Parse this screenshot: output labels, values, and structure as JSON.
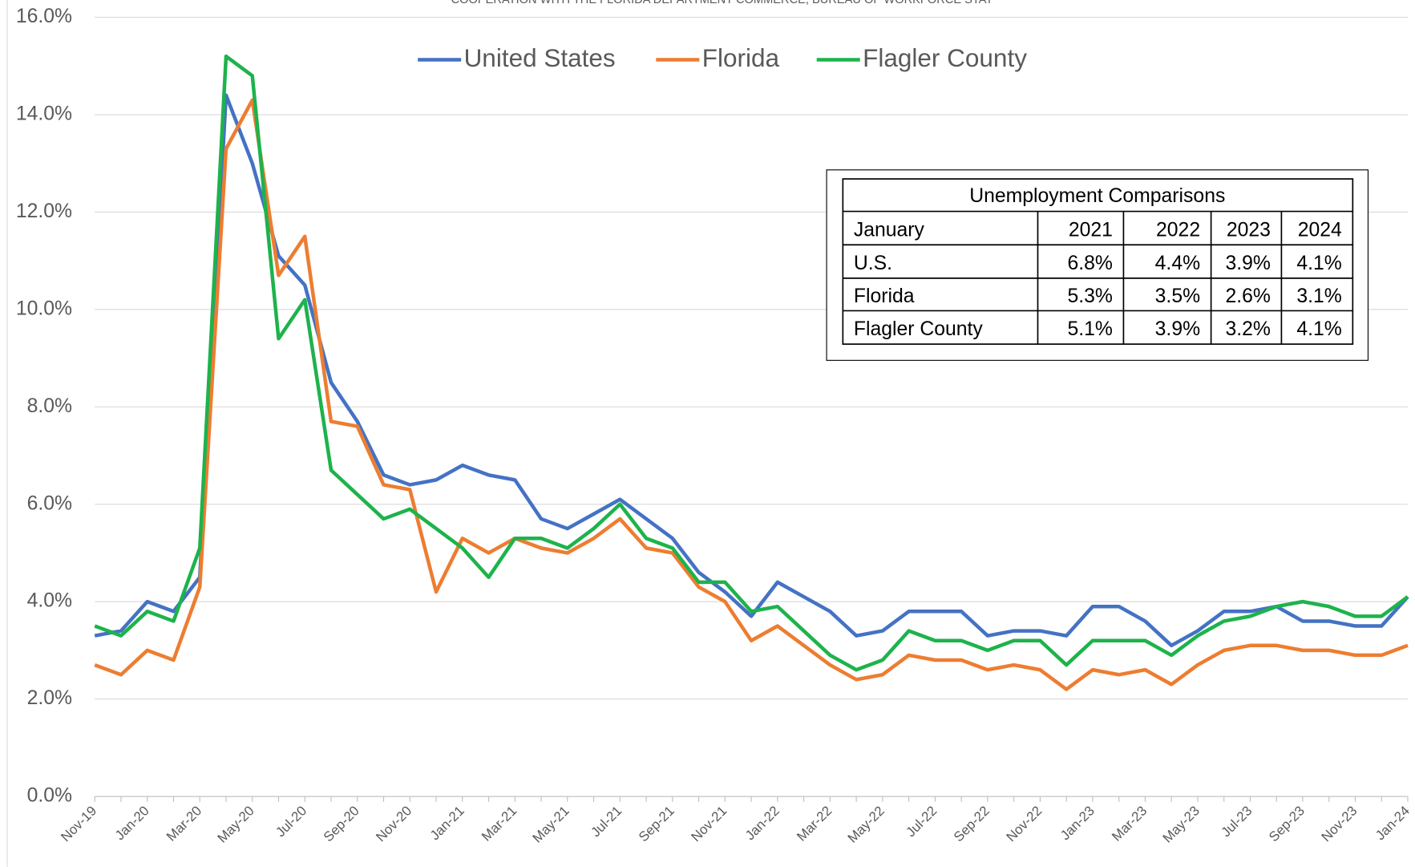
{
  "chart_data": {
    "type": "line",
    "subtitle": "COOPERATION WITH THE FLORIDA DEPARTMENT COMMERCE, BUREAU OF WORKFORCE STAT",
    "categories": [
      "Nov-19",
      null,
      "Jan-20",
      null,
      "Mar-20",
      null,
      "May-20",
      null,
      "Jul-20",
      null,
      "Sep-20",
      null,
      "Nov-20",
      null,
      "Jan-21",
      null,
      "Mar-21",
      null,
      "May-21",
      null,
      "Jul-21",
      null,
      "Sep-21",
      null,
      "Nov-21",
      null,
      "Jan-22",
      null,
      "Mar-22",
      null,
      "May-22",
      null,
      "Jul-22",
      null,
      "Sep-22",
      null,
      "Nov-22",
      null,
      "Jan-23",
      null,
      "Mar-23",
      null,
      "May-23",
      null,
      "Jul-23",
      null,
      "Sep-23",
      null,
      "Nov-23",
      null,
      "Jan-24"
    ],
    "series": [
      {
        "name": "United States",
        "color": "#4472c4",
        "values": [
          3.3,
          3.4,
          4.0,
          3.8,
          4.5,
          14.4,
          13.0,
          11.1,
          10.5,
          8.5,
          7.7,
          6.6,
          6.4,
          6.5,
          6.8,
          6.6,
          6.5,
          5.7,
          5.5,
          5.8,
          6.1,
          5.7,
          5.3,
          4.6,
          4.2,
          3.7,
          4.4,
          4.1,
          3.8,
          3.3,
          3.4,
          3.8,
          3.8,
          3.8,
          3.3,
          3.4,
          3.4,
          3.3,
          3.9,
          3.9,
          3.6,
          3.1,
          3.4,
          3.8,
          3.8,
          3.9,
          3.6,
          3.6,
          3.5,
          3.5,
          4.1
        ]
      },
      {
        "name": "Florida",
        "color": "#ed7d31",
        "values": [
          2.7,
          2.5,
          3.0,
          2.8,
          4.3,
          13.3,
          14.3,
          10.7,
          11.5,
          7.7,
          7.6,
          6.4,
          6.3,
          4.2,
          5.3,
          5.0,
          5.3,
          5.1,
          5.0,
          5.3,
          5.7,
          5.1,
          5.0,
          4.3,
          4.0,
          3.2,
          3.5,
          3.1,
          2.7,
          2.4,
          2.5,
          2.9,
          2.8,
          2.8,
          2.6,
          2.7,
          2.6,
          2.2,
          2.6,
          2.5,
          2.6,
          2.3,
          2.7,
          3.0,
          3.1,
          3.1,
          3.0,
          3.0,
          2.9,
          2.9,
          3.1
        ]
      },
      {
        "name": "Flagler County",
        "color": "#1db34b",
        "values": [
          3.5,
          3.3,
          3.8,
          3.6,
          5.1,
          15.2,
          14.8,
          9.4,
          10.2,
          6.7,
          6.2,
          5.7,
          5.9,
          5.5,
          5.1,
          4.5,
          5.3,
          5.3,
          5.1,
          5.5,
          6.0,
          5.3,
          5.1,
          4.4,
          4.4,
          3.8,
          3.9,
          3.4,
          2.9,
          2.6,
          2.8,
          3.4,
          3.2,
          3.2,
          3.0,
          3.2,
          3.2,
          2.7,
          3.2,
          3.2,
          3.2,
          2.9,
          3.3,
          3.6,
          3.7,
          3.9,
          4.0,
          3.9,
          3.7,
          3.7,
          4.1
        ]
      }
    ],
    "ylim": [
      0,
      16
    ],
    "yticks": [
      {
        "value": 0,
        "label": "0.0%"
      },
      {
        "value": 2,
        "label": "2.0%"
      },
      {
        "value": 4,
        "label": "4.0%"
      },
      {
        "value": 6,
        "label": "6.0%"
      },
      {
        "value": 8,
        "label": "8.0%"
      },
      {
        "value": 10,
        "label": "10.0%"
      },
      {
        "value": 12,
        "label": "12.0%"
      },
      {
        "value": 14,
        "label": "14.0%"
      },
      {
        "value": 16,
        "label": "16.0%"
      }
    ],
    "grid": true,
    "legend": "top",
    "table": {
      "title": "Unemployment Comparisons",
      "header": [
        "January",
        "2021",
        "2022",
        "2023",
        "2024"
      ],
      "rows": [
        [
          "U.S.",
          "6.8%",
          "4.4%",
          "3.9%",
          "4.1%"
        ],
        [
          "Florida",
          "5.3%",
          "3.5%",
          "2.6%",
          "3.1%"
        ],
        [
          "Flagler County",
          "5.1%",
          "3.9%",
          "3.2%",
          "4.1%"
        ]
      ]
    }
  }
}
